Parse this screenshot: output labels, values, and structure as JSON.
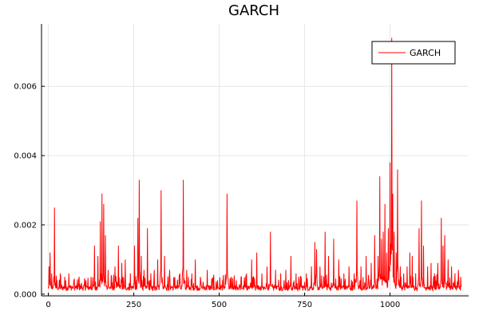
{
  "chart_data": {
    "type": "line",
    "title": "GARCH",
    "xlabel": "",
    "ylabel": "",
    "xlim": [
      -20,
      1230
    ],
    "ylim": [
      -5e-05,
      0.0078
    ],
    "xticks": [
      0,
      250,
      500,
      750,
      1000
    ],
    "yticks": [
      0.0,
      0.002,
      0.004,
      0.006
    ],
    "xtick_labels": [
      "0",
      "250",
      "500",
      "750",
      "1000"
    ],
    "ytick_labels": [
      "0.000",
      "0.002",
      "0.004",
      "0.006"
    ],
    "grid": true,
    "legend_position": "top-right",
    "series": [
      {
        "name": "GARCH",
        "color": "#ff0000",
        "n_points": 1210,
        "baseline": 0.0002,
        "spikes": [
          [
            2,
            0.0008
          ],
          [
            5,
            0.0012
          ],
          [
            10,
            0.0006
          ],
          [
            18,
            0.0025
          ],
          [
            25,
            0.0004
          ],
          [
            35,
            0.0006
          ],
          [
            48,
            0.0005
          ],
          [
            60,
            0.0006
          ],
          [
            75,
            0.0004
          ],
          [
            90,
            0.0005
          ],
          [
            110,
            0.0004
          ],
          [
            125,
            0.0005
          ],
          [
            135,
            0.0014
          ],
          [
            145,
            0.0011
          ],
          [
            152,
            0.0021
          ],
          [
            157,
            0.0029
          ],
          [
            162,
            0.0026
          ],
          [
            167,
            0.0017
          ],
          [
            175,
            0.0007
          ],
          [
            185,
            0.0005
          ],
          [
            195,
            0.0008
          ],
          [
            205,
            0.0014
          ],
          [
            215,
            0.0009
          ],
          [
            225,
            0.001
          ],
          [
            240,
            0.0006
          ],
          [
            252,
            0.0014
          ],
          [
            262,
            0.0022
          ],
          [
            266,
            0.0033
          ],
          [
            272,
            0.0011
          ],
          [
            280,
            0.0007
          ],
          [
            290,
            0.0019
          ],
          [
            300,
            0.0006
          ],
          [
            310,
            0.0007
          ],
          [
            320,
            0.001
          ],
          [
            330,
            0.003
          ],
          [
            340,
            0.0011
          ],
          [
            355,
            0.0007
          ],
          [
            370,
            0.0005
          ],
          [
            385,
            0.0006
          ],
          [
            395,
            0.0033
          ],
          [
            405,
            0.0007
          ],
          [
            420,
            0.0006
          ],
          [
            430,
            0.001
          ],
          [
            445,
            0.0005
          ],
          [
            465,
            0.0007
          ],
          [
            480,
            0.0004
          ],
          [
            495,
            0.0004
          ],
          [
            510,
            0.0004
          ],
          [
            523,
            0.0029
          ],
          [
            535,
            0.0005
          ],
          [
            550,
            0.0004
          ],
          [
            565,
            0.0005
          ],
          [
            580,
            0.0006
          ],
          [
            595,
            0.001
          ],
          [
            610,
            0.0012
          ],
          [
            625,
            0.0006
          ],
          [
            640,
            0.0008
          ],
          [
            650,
            0.0018
          ],
          [
            665,
            0.0007
          ],
          [
            680,
            0.0006
          ],
          [
            695,
            0.0007
          ],
          [
            710,
            0.0011
          ],
          [
            725,
            0.0006
          ],
          [
            740,
            0.0005
          ],
          [
            755,
            0.0006
          ],
          [
            770,
            0.0008
          ],
          [
            780,
            0.0015
          ],
          [
            785,
            0.0013
          ],
          [
            795,
            0.0008
          ],
          [
            810,
            0.0018
          ],
          [
            820,
            0.0011
          ],
          [
            835,
            0.0016
          ],
          [
            850,
            0.001
          ],
          [
            865,
            0.0006
          ],
          [
            880,
            0.0008
          ],
          [
            895,
            0.0006
          ],
          [
            903,
            0.0027
          ],
          [
            915,
            0.0008
          ],
          [
            930,
            0.0011
          ],
          [
            945,
            0.0009
          ],
          [
            955,
            0.0017
          ],
          [
            965,
            0.0011
          ],
          [
            970,
            0.0034
          ],
          [
            975,
            0.0016
          ],
          [
            980,
            0.0018
          ],
          [
            985,
            0.0026
          ],
          [
            990,
            0.0012
          ],
          [
            995,
            0.0019
          ],
          [
            1000,
            0.0038
          ],
          [
            1005,
            0.0074
          ],
          [
            1008,
            0.0029
          ],
          [
            1012,
            0.0018
          ],
          [
            1018,
            0.0012
          ],
          [
            1022,
            0.0036
          ],
          [
            1030,
            0.0008
          ],
          [
            1040,
            0.0006
          ],
          [
            1050,
            0.0008
          ],
          [
            1058,
            0.0012
          ],
          [
            1065,
            0.0011
          ],
          [
            1075,
            0.0006
          ],
          [
            1085,
            0.0019
          ],
          [
            1092,
            0.0027
          ],
          [
            1098,
            0.0014
          ],
          [
            1110,
            0.0008
          ],
          [
            1120,
            0.0009
          ],
          [
            1130,
            0.0006
          ],
          [
            1140,
            0.0009
          ],
          [
            1150,
            0.0022
          ],
          [
            1155,
            0.0014
          ],
          [
            1160,
            0.0017
          ],
          [
            1170,
            0.001
          ],
          [
            1180,
            0.0008
          ],
          [
            1190,
            0.0006
          ],
          [
            1200,
            0.0007
          ],
          [
            1207,
            0.0005
          ]
        ]
      }
    ]
  }
}
